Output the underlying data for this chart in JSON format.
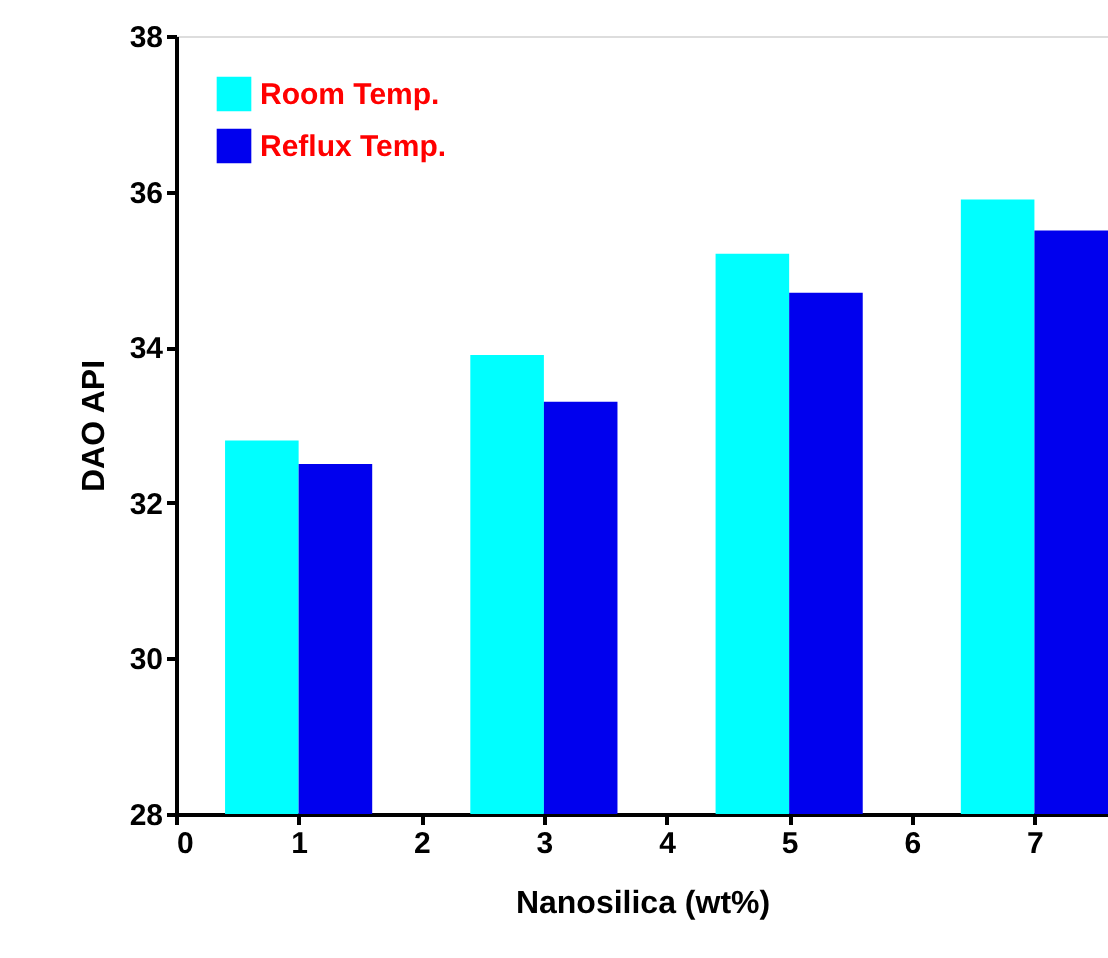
{
  "chart_data": {
    "type": "bar",
    "xlabel": "Nanosilica (wt%)",
    "ylabel": "DAO API",
    "x": [
      1,
      3,
      5,
      7
    ],
    "series": [
      {
        "name": "Room Temp.",
        "color": "#00ffff",
        "values": [
          32.8,
          33.9,
          35.2,
          35.9
        ]
      },
      {
        "name": "Reflux Temp.",
        "color": "#0000ee",
        "values": [
          32.5,
          33.3,
          34.7,
          35.5
        ]
      }
    ],
    "xlim": [
      0,
      7.6
    ],
    "xticks": [
      0,
      1,
      2,
      3,
      4,
      5,
      6,
      7
    ],
    "ylim": [
      28,
      38
    ],
    "yticks": [
      28,
      30,
      32,
      34,
      36,
      38
    ],
    "grid": false,
    "legend": "top left"
  }
}
